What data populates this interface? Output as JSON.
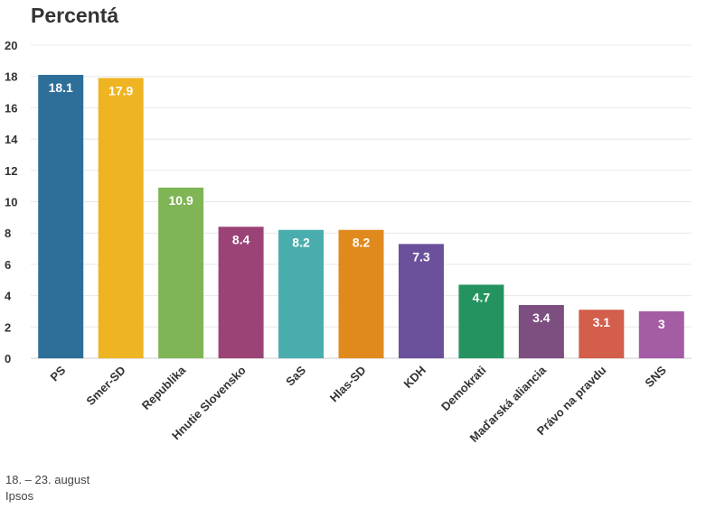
{
  "chart_data": {
    "type": "bar",
    "title": "Percentá",
    "categories": [
      "PS",
      "Smer-SD",
      "Republika",
      "Hnutie Slovensko",
      "SaS",
      "Hlas-SD",
      "KDH",
      "Demokrati",
      "Maďarská aliancia",
      "Právo na pravdu",
      "SNS"
    ],
    "values": [
      18.1,
      17.9,
      10.9,
      8.4,
      8.2,
      8.2,
      7.3,
      4.7,
      3.4,
      3.1,
      3
    ],
    "colors": [
      "#2e6f9a",
      "#eeb422",
      "#7fb554",
      "#9b4377",
      "#4aadad",
      "#e08a1e",
      "#6b519b",
      "#24935f",
      "#7d4e80",
      "#d25e4b",
      "#a45ca4"
    ],
    "yticks": [
      "0",
      "2",
      "4",
      "6",
      "8",
      "10",
      "12",
      "14",
      "16",
      "18",
      "20"
    ],
    "ylim": [
      0,
      20
    ],
    "grid": true,
    "legend": "none"
  },
  "footer": {
    "dates": "18. – 23. august",
    "source": "Ipsos"
  }
}
